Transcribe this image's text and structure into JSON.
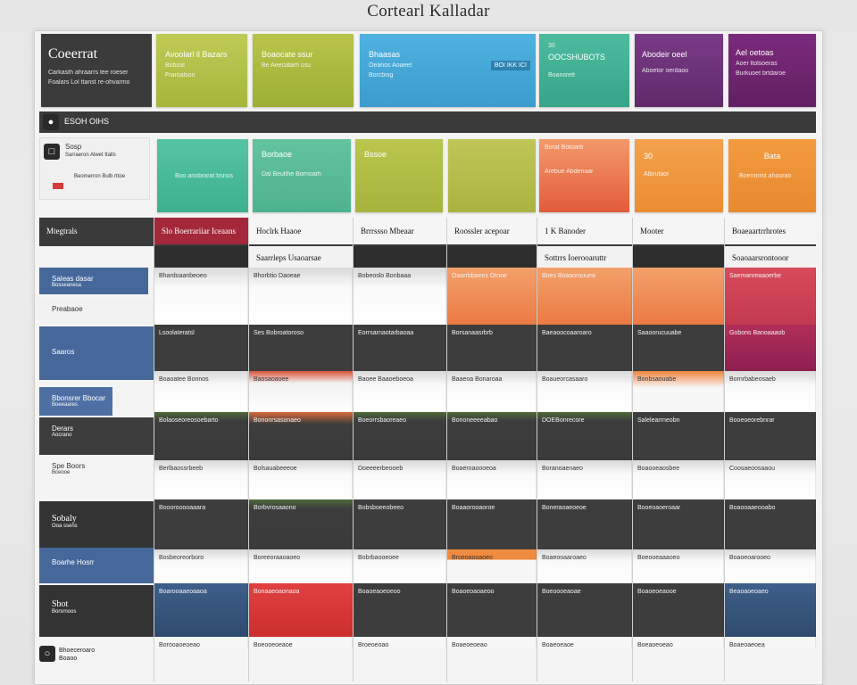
{
  "page_title": "Cortearl Kalladar",
  "brand": {
    "name": "Coeerrat",
    "line1": "Carkasth ahraarrs tee roeser",
    "line2": "Foalars Lol ttanst re-ohvarmo"
  },
  "top_tiles": [
    {
      "title": "Avoolarl ll Bazars",
      "sub": "Boboal",
      "line": "Fraroalson"
    },
    {
      "title": "Boaocate ssur",
      "sub": "",
      "line": "Be Aeecatarh ssu"
    },
    {
      "title": "Bhaasas",
      "sub": "Oeanos Aoaeet",
      "line": "Borcbisg",
      "badge": "BOI IKK ICI"
    },
    {
      "title": "OOCSHUBOTS",
      "sub": "30",
      "line": "Boansrett"
    },
    {
      "title": "Abodeir oeel",
      "sub": "",
      "line": "Aboetor oerdaoo"
    },
    {
      "title": "Ael oetoas",
      "sub": "Aoer ltolsoeras",
      "line": "Burkuoet brtdaroe"
    }
  ],
  "section_bar": {
    "label": "ESOH OIHS"
  },
  "section_panel": {
    "label": "Sosp",
    "line": "Sarraeron Alwet ttalls",
    "line2": "Beomerron Bulb rttoe"
  },
  "second_tiles": [
    {
      "title": "",
      "line": "Boo anobrarat bsnus"
    },
    {
      "title": "Borbaoe",
      "line": "Dal Beulthe Bornoarh"
    },
    {
      "title": "Bssoe",
      "line": ""
    },
    {
      "title": "",
      "line": ""
    },
    {
      "title": "Borat Botoarb",
      "line": "Arebue Abdenaar"
    },
    {
      "title": "30",
      "line": "Albrutaor"
    },
    {
      "title": "Bata",
      "line": "Boeronrot ahoorao"
    }
  ],
  "grid_headers": [
    "Mtegtrals",
    "Slo Boerrariiar Iceaans",
    "Hoclrk Haaoe",
    "Brrrssso Mbeaar",
    "Roossler acepoar",
    "1 K Banoder",
    "Mooter",
    "Boaeaartrrhrotes"
  ],
  "sub_headers": [
    "Saarrleps Usaoarsae",
    "Sottrrs Ioerooaruttr",
    "Soaoaarsrontooor"
  ],
  "row_labels": [
    {
      "text": "Saleas dasar",
      "sub": "Bosseanesa"
    },
    {
      "text": "Preabaoe",
      "sub": ""
    },
    {
      "text": "Saaros",
      "sub": ""
    },
    {
      "text": "Bbonsrer Bbocar",
      "sub": "Boeeaares"
    },
    {
      "text": "Derars",
      "sub": "Aocrano"
    },
    {
      "text": "Spe Boors",
      "sub": "Bceooe"
    },
    {
      "text": "Sobaly",
      "sub": "Ooa ssens"
    },
    {
      "text": "Boarhe Hosrr",
      "sub": ""
    },
    {
      "text": "Sbot",
      "sub": "Borsrnoos"
    }
  ],
  "grid_cells": [
    [
      "Bhardoaanbeoeo",
      "Bhorbtio Daoeae",
      "Bobeoslo Bonbaaa",
      "Oaarrbbaees Otnoe",
      "Boes Boaaorouuea",
      "",
      "Saemanreaaoerbe"
    ],
    [
      "Lsoolateratsl",
      "Ses Bobroatoroso",
      "Eorrsarnaotarbaoaa",
      "Borsanaasrbrb",
      "Baeaoocoaaroaro",
      "Saaoorucuuabe",
      "Gobons Banoaaaob"
    ],
    [
      "Boaoatee Bonnos",
      "Baosaoaoee",
      "Baoee Baaoeboeoa",
      "Baaeoa Bonaroaa",
      "Boaueorcasaaro",
      "Bonbsaouabe",
      "Bornrbabeosaeb"
    ],
    [
      "Bolaoseoreosoebarto",
      "Bononrsasonaeo",
      "Boeorrsbaoreaeo",
      "Bononeeeeabao",
      "DOEBonrecore",
      "Salelearrneobn",
      "Booeoeorebnrar"
    ],
    [
      "Berlbaossrbeeb",
      "Bolsauabeeeoe",
      "Doeeeerbeooeb",
      "Boaeroaoooeoa",
      "Boranoaenaeo",
      "Boaooeaosbee",
      "Coosaeoosaaou"
    ],
    [
      "Booorooooaaara",
      "Borbvrosaaono",
      "Bobsboeeobeeo",
      "Boaaorooaoroe",
      "Boneraoaeoeoe",
      "Booeoaoeroaar",
      "Boaooaaeooabo"
    ],
    [
      "Bosbeoreorboro",
      "Boreeoraaoaoeo",
      "Bobrbaooeoee",
      "Broeoaooaoeo",
      "Boaeooaaroaeo",
      "Boeooeaaaoeo",
      "Boaoeoarooeo"
    ],
    [
      "Boarooaaeoaaoa",
      "Bonaaeoaonaoa",
      "Boaoeaoeoeoo",
      "Boaoeoaoaeoo",
      "Boeoooeaoae",
      "Boaoeoeaooe",
      "Beaoaoeoaeo"
    ],
    [
      "Borooaoeoeao",
      "Boeooeoeaoe",
      "Broeoeoao",
      "Boaeoeoeao",
      "Boaeoeaoe",
      "Boeaoeoeao",
      "Boaeoaeoea"
    ]
  ],
  "footer": {
    "line1": "Bhoeceroaro",
    "line2": "Boaoo"
  },
  "colors": {
    "olive": "#a9b53a",
    "olive2": "#b3b83f",
    "blue": "#45a8d8",
    "teal": "#46b79b",
    "purple": "#6e2e7a",
    "violet": "#6a1e6e",
    "orange": "#ee7a3a",
    "red": "#d84343",
    "crimson": "#c93a56",
    "navy": "#3d5e8e",
    "dark": "#3d3d3d"
  }
}
